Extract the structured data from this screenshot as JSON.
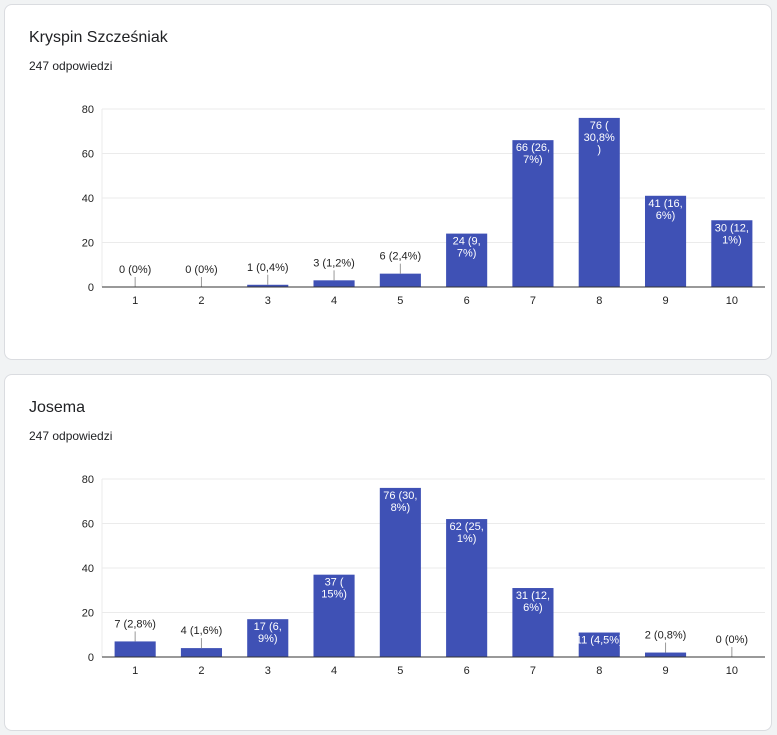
{
  "colors": {
    "bar": "#3f51b5",
    "grid": "#ebebeb",
    "axis": "#333333",
    "label_inside": "#ffffff",
    "label_outside": "#222222",
    "leader": "#999999"
  },
  "chart_data": [
    {
      "type": "bar",
      "title": "Kryspin Szcześniak",
      "subtitle": "247 odpowiedzi",
      "categories": [
        "1",
        "2",
        "3",
        "4",
        "5",
        "6",
        "7",
        "8",
        "9",
        "10"
      ],
      "values": [
        0,
        0,
        1,
        3,
        6,
        24,
        66,
        76,
        41,
        30
      ],
      "data_labels": [
        "0 (0%)",
        "0 (0%)",
        "1 (0,4%)",
        "3 (1,2%)",
        "6 (2,4%)",
        "24 (9,\n7%)",
        "66 (26,\n7%)",
        "76 (\n30,8%\n)",
        "41 (16,\n6%)",
        "30 (12,\n1%)"
      ],
      "yticks": [
        "0",
        "20",
        "40",
        "60",
        "80"
      ],
      "ylim": [
        0,
        80
      ],
      "grid": true
    },
    {
      "type": "bar",
      "title": "Josema",
      "subtitle": "247 odpowiedzi",
      "categories": [
        "1",
        "2",
        "3",
        "4",
        "5",
        "6",
        "7",
        "8",
        "9",
        "10"
      ],
      "values": [
        7,
        4,
        17,
        37,
        76,
        62,
        31,
        11,
        2,
        0
      ],
      "data_labels": [
        "7 (2,8%)",
        "4 (1,6%)",
        "17 (6,\n9%)",
        "37 (\n15%)",
        "76 (30,\n8%)",
        "62 (25,\n1%)",
        "31 (12,\n6%)",
        "11 (4,5%)",
        "2 (0,8%)",
        "0 (0%)"
      ],
      "yticks": [
        "0",
        "20",
        "40",
        "60",
        "80"
      ],
      "ylim": [
        0,
        80
      ],
      "grid": true
    }
  ]
}
